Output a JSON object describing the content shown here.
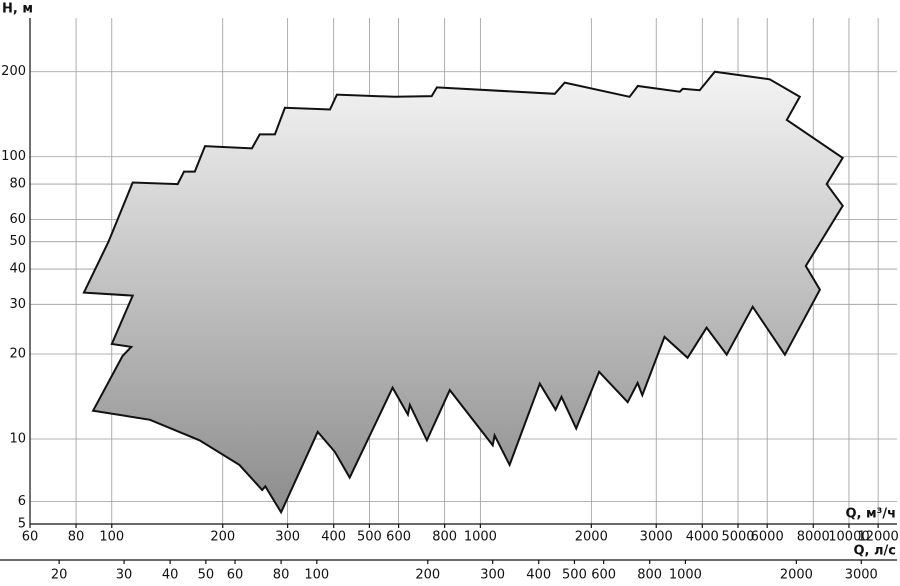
{
  "chart_data": {
    "type": "area",
    "y_label": "H, м",
    "x_label": "Q, м³/ч",
    "x2_label": "Q, л/с",
    "log_x": true,
    "log_y": true,
    "grid": true,
    "xlim": [
      60,
      13500
    ],
    "ylim": [
      5,
      310
    ],
    "x2lim": [
      16.67,
      3750
    ],
    "xticks": [
      60,
      80,
      100,
      200,
      300,
      400,
      500,
      600,
      800,
      1000,
      2000,
      3000,
      4000,
      5000,
      6000,
      8000,
      10000,
      12000
    ],
    "yticks": [
      5,
      6,
      10,
      20,
      30,
      40,
      50,
      60,
      80,
      100,
      200
    ],
    "x2ticks": [
      20,
      30,
      40,
      50,
      60,
      80,
      100,
      200,
      300,
      400,
      500,
      600,
      800,
      1000,
      2000,
      3000
    ],
    "x": [
      84,
      98,
      114,
      151,
      157,
      168,
      179,
      240,
      252,
      277,
      295,
      391,
      408,
      586,
      738,
      762,
      1592,
      1694,
      2541,
      2673,
      3475,
      3540,
      3936,
      4325,
      6096,
      7354,
      6780,
      9616,
      8700,
      9616,
      7638,
      8340,
      6700,
      5480,
      4660,
      4110,
      3650,
      3160,
      2750,
      2670,
      2510,
      2100,
      1820,
      1660,
      1600,
      1450,
      1200,
      1093,
      1080,
      826,
      716,
      644,
      636,
      578,
      442,
      403,
      362,
      288,
      261,
      256,
      222,
      173,
      127,
      89,
      107,
      113,
      100,
      114
    ],
    "y": [
      33,
      50,
      81,
      80,
      88.6,
      88.6,
      109,
      107,
      120,
      120,
      149,
      147,
      166,
      163,
      164,
      176,
      167,
      183,
      163,
      178,
      170,
      174,
      172,
      200,
      188,
      163,
      135,
      99,
      80,
      67,
      41,
      33.8,
      19.9,
      29.4,
      19.9,
      24.8,
      19.4,
      23,
      14.3,
      15.8,
      13.5,
      17.3,
      10.9,
      14.1,
      12.7,
      15.7,
      8.1,
      10.3,
      9.5,
      14.9,
      9.9,
      13.2,
      12.2,
      15.2,
      7.3,
      9.0,
      10.6,
      5.5,
      6.8,
      6.6,
      8.1,
      9.9,
      11.7,
      12.6,
      19.7,
      21.2,
      21.7,
      32.2
    ],
    "colors": [
      "#f4f4f4",
      "#8c8c8c"
    ],
    "stroke": "#111111"
  }
}
